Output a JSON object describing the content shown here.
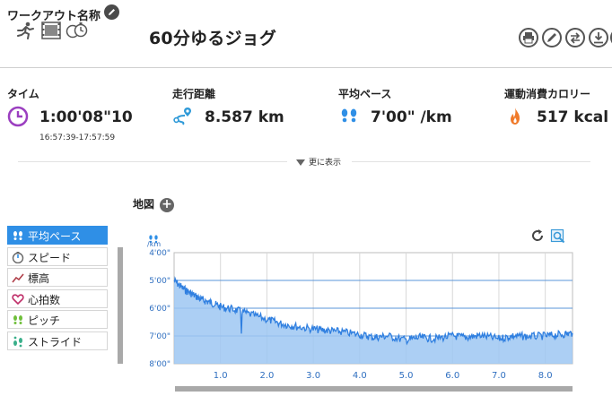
{
  "header": {
    "label": "ワークアウト名称",
    "title": "60分ゆるジョグ",
    "icons": [
      "runner-icon",
      "video-icon",
      "stopwatch-icon"
    ],
    "toolbar": [
      "print-icon",
      "edit-icon",
      "swap-icon",
      "download-icon",
      "more-icon"
    ]
  },
  "stats": {
    "time": {
      "label": "タイム",
      "value": "1:00'08\"10",
      "sub": "16:57:39-17:57:59",
      "icon": "clock-icon",
      "color": "#9b3fc0"
    },
    "distance": {
      "label": "走行距離",
      "value": "8.587 km",
      "icon": "route-icon",
      "color": "#2f9ad8"
    },
    "pace": {
      "label": "平均ペース",
      "value": "7'00\" /km",
      "icon": "footsteps-icon",
      "color": "#2f8fe6"
    },
    "calories": {
      "label": "運動消費カロリー",
      "value": "517 kcal",
      "icon": "flame-icon",
      "color": "#f07a2a"
    }
  },
  "more_label": "更に表示",
  "map_label": "地図",
  "metrics": [
    {
      "label": "平均ペース",
      "icon": "footsteps-icon",
      "active": true
    },
    {
      "label": "スピード",
      "icon": "speedometer-icon",
      "active": false
    },
    {
      "label": "標高",
      "icon": "elevation-icon",
      "active": false
    },
    {
      "label": "心拍数",
      "icon": "heart-icon",
      "active": false
    },
    {
      "label": "ピッチ",
      "icon": "cadence-icon",
      "active": false
    },
    {
      "label": "ストライド",
      "icon": "stride-icon",
      "active": false
    }
  ],
  "chart_data": {
    "type": "area",
    "y_unit": "/km",
    "x_ticks": [
      "1.0",
      "2.0",
      "3.0",
      "4.0",
      "5.0",
      "6.0",
      "7.0",
      "8.0"
    ],
    "y_ticks": [
      "4'00\"",
      "5'00\"",
      "6'00\"",
      "7'00\"",
      "8'00\""
    ],
    "xlim": [
      0,
      8.587
    ],
    "ylim_pace_min_per_km": [
      4,
      8
    ],
    "y_inverted": true,
    "grid": true,
    "line_color": "#2f7fe0",
    "fill_color": "#9ec7f2",
    "x": [
      0,
      0.2,
      0.4,
      0.6,
      0.8,
      1.0,
      1.3,
      1.6,
      2.0,
      2.3,
      2.6,
      3.0,
      3.3,
      3.6,
      4.0,
      4.3,
      4.6,
      5.0,
      5.3,
      5.6,
      6.0,
      6.3,
      6.6,
      7.0,
      7.3,
      7.6,
      8.0,
      8.3,
      8.587
    ],
    "pace_min_per_km": [
      5.0,
      5.3,
      5.5,
      5.7,
      5.8,
      5.95,
      6.05,
      6.2,
      6.4,
      6.55,
      6.65,
      6.75,
      6.8,
      6.85,
      6.95,
      7.05,
      7.0,
      7.15,
      7.05,
      7.1,
      7.0,
      7.05,
      6.98,
      7.1,
      7.0,
      7.02,
      7.0,
      6.95,
      6.9
    ]
  }
}
